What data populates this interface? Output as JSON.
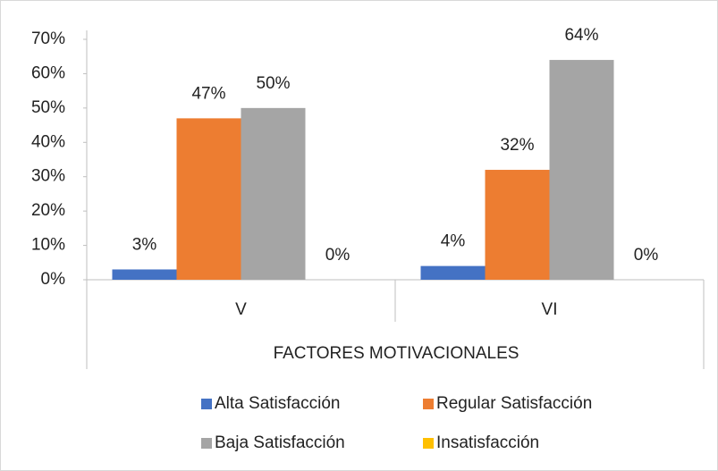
{
  "chart_data": {
    "type": "bar",
    "xlabel": "FACTORES MOTIVACIONALES",
    "categories": [
      "V",
      "VI"
    ],
    "series": [
      {
        "name": "Alta Satisfacción",
        "color": "#4472c4",
        "values": [
          3,
          4
        ],
        "value_labels": [
          "3%",
          "4%"
        ]
      },
      {
        "name": "Regular Satisfacción",
        "color": "#ed7d31",
        "values": [
          47,
          32
        ],
        "value_labels": [
          "47%",
          "32%"
        ]
      },
      {
        "name": "Baja Satisfacción",
        "color": "#a5a5a5",
        "values": [
          50,
          64
        ],
        "value_labels": [
          "50%",
          "64%"
        ]
      },
      {
        "name": "Insatisfacción",
        "color": "#ffc000",
        "values": [
          0,
          0
        ],
        "value_labels": [
          "0%",
          "0%"
        ]
      }
    ],
    "ylim": [
      0,
      70
    ],
    "yticks": [
      {
        "value": 0,
        "label": "0%"
      },
      {
        "value": 10,
        "label": "10%"
      },
      {
        "value": 20,
        "label": "20%"
      },
      {
        "value": 30,
        "label": "30%"
      },
      {
        "value": 40,
        "label": "40%"
      },
      {
        "value": 50,
        "label": "50%"
      },
      {
        "value": 60,
        "label": "60%"
      },
      {
        "value": 70,
        "label": "70%"
      }
    ],
    "grid": false,
    "legend": "bottom"
  }
}
